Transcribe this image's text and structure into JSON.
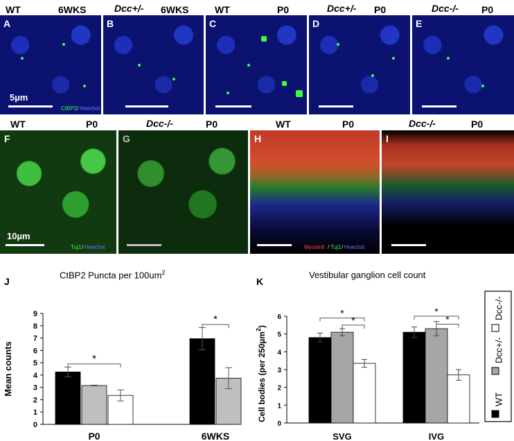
{
  "top_row": {
    "panels": [
      {
        "letter": "A",
        "genotype": "WT",
        "age": "6WKS"
      },
      {
        "letter": "B",
        "genotype": "Dcc+/-",
        "age": "6WKS"
      },
      {
        "letter": "C",
        "genotype": "WT",
        "age": "P0"
      },
      {
        "letter": "D",
        "genotype": "Dcc+/-",
        "age": "P0"
      },
      {
        "letter": "E",
        "genotype": "Dcc-/-",
        "age": "P0"
      }
    ],
    "scale_text": "5µm",
    "stain_ctbp2": "CtBP2",
    "stain_sep": "/",
    "stain_hoechst": "Hoechst"
  },
  "middle_row": {
    "panels": [
      {
        "letter": "F",
        "genotype": "WT",
        "age": "P0"
      },
      {
        "letter": "G",
        "genotype": "Dcc-/-",
        "age": "P0"
      },
      {
        "letter": "H",
        "genotype": "WT",
        "age": "P0"
      },
      {
        "letter": "I",
        "genotype": "Dcc-/-",
        "age": "P0"
      }
    ],
    "scale_text": "10µm",
    "stain_tuj1": "Tuj1",
    "stain_sep": "/",
    "stain_hoechst": "Hoechst",
    "stain_myosin": "Myosin6"
  },
  "chart_data": [
    {
      "panel": "J",
      "type": "bar",
      "title": "CtBP2 Puncta per 100um",
      "title_superscript": "2",
      "ylabel": "Mean counts",
      "ylim": [
        0,
        9
      ],
      "yticks": [
        0,
        1,
        2,
        3,
        4,
        5,
        6,
        7,
        8,
        9
      ],
      "groups": [
        {
          "label": "P0",
          "bars": [
            {
              "value": 4.25,
              "err": 0.4,
              "color": "#000000"
            },
            {
              "value": 3.15,
              "err": 0.03,
              "color": "#bfbfbf"
            },
            {
              "value": 2.35,
              "err": 0.45,
              "color": "#ffffff"
            }
          ],
          "sig": "*"
        },
        {
          "label": "6WKS",
          "bars": [
            {
              "value": 6.95,
              "err": 0.9,
              "color": "#000000"
            },
            {
              "value": 3.75,
              "err": 0.85,
              "color": "#bfbfbf"
            }
          ],
          "sig": "*"
        }
      ]
    },
    {
      "panel": "K",
      "type": "bar",
      "title": "Vestibular ganglion cell count",
      "ylabel": "Cell bodies (per 250µm",
      "ylabel_superscript": "2",
      "ylabel_close": ")",
      "ylim": [
        0,
        6
      ],
      "yticks": [
        0,
        1,
        2,
        3,
        4,
        5,
        6
      ],
      "groups": [
        {
          "label": "SVG",
          "bars": [
            {
              "value": 4.8,
              "err": 0.25,
              "color": "#000000"
            },
            {
              "value": 5.1,
              "err": 0.2,
              "color": "#a6a6a6"
            },
            {
              "value": 3.35,
              "err": 0.22,
              "color": "#ffffff"
            }
          ],
          "sig": [
            "*",
            "*"
          ]
        },
        {
          "label": "IVG",
          "bars": [
            {
              "value": 5.1,
              "err": 0.3,
              "color": "#000000"
            },
            {
              "value": 5.3,
              "err": 0.4,
              "color": "#a6a6a6"
            },
            {
              "value": 2.7,
              "err": 0.3,
              "color": "#ffffff"
            }
          ],
          "sig": [
            "*",
            "*"
          ]
        }
      ],
      "legend": [
        {
          "name": "WT",
          "color": "#000000"
        },
        {
          "name": "Dcc+/-",
          "color": "#a6a6a6"
        },
        {
          "name": "Dcc-/-",
          "color": "#ffffff"
        }
      ],
      "legend_placement": "right"
    }
  ]
}
